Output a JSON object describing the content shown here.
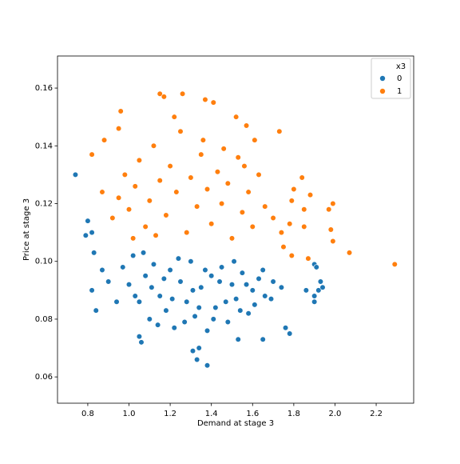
{
  "chart_data": {
    "type": "scatter",
    "xlabel": "Demand at stage 3",
    "ylabel": "Price at stage 3",
    "xlim": [
      0.653,
      2.382
    ],
    "ylim": [
      0.0509,
      0.1711
    ],
    "xticks": [
      0.8,
      {
        "value": 1.0,
        "label": "1.0"
      },
      1.2,
      1.4,
      1.6,
      1.8,
      {
        "value": 2.0,
        "label": "2.0"
      },
      2.2
    ],
    "yticks": [
      0.06,
      0.08,
      {
        "value": 0.1,
        "label": "0.10"
      },
      0.12,
      0.14,
      0.16
    ],
    "legend_title": "x3",
    "legend_position": "upper right",
    "series": [
      {
        "name": "0",
        "color": "#1f77b4",
        "x": [
          0.74,
          0.79,
          0.8,
          0.82,
          0.83,
          0.82,
          0.84,
          0.87,
          0.9,
          0.94,
          1.06,
          1.05,
          1.33,
          1.38,
          1.31,
          1.34,
          1.53,
          1.65,
          1.76,
          1.78,
          1.86,
          1.9,
          1.91,
          1.92,
          1.93,
          1.9,
          1.9,
          1.94,
          0.97,
          1.0,
          1.02,
          1.05,
          1.08,
          1.1,
          1.12,
          1.15,
          1.18,
          1.2,
          1.22,
          1.25,
          1.28,
          1.3,
          1.32,
          1.35,
          1.38,
          1.4,
          1.42,
          1.45,
          1.48,
          1.5,
          1.52,
          1.55,
          1.58,
          1.6,
          1.63,
          1.66,
          1.7,
          1.74,
          1.03,
          1.07,
          1.11,
          1.14,
          1.17,
          1.21,
          1.24,
          1.27,
          1.31,
          1.34,
          1.37,
          1.41,
          1.44,
          1.47,
          1.51,
          1.54,
          1.57,
          1.61,
          1.65,
          1.69
        ],
        "y": [
          0.13,
          0.109,
          0.114,
          0.11,
          0.103,
          0.09,
          0.083,
          0.097,
          0.093,
          0.086,
          0.072,
          0.074,
          0.066,
          0.064,
          0.069,
          0.07,
          0.073,
          0.073,
          0.077,
          0.075,
          0.09,
          0.099,
          0.098,
          0.09,
          0.093,
          0.088,
          0.086,
          0.091,
          0.098,
          0.092,
          0.102,
          0.086,
          0.095,
          0.08,
          0.099,
          0.088,
          0.083,
          0.097,
          0.077,
          0.093,
          0.086,
          0.1,
          0.081,
          0.091,
          0.076,
          0.095,
          0.084,
          0.098,
          0.079,
          0.092,
          0.087,
          0.096,
          0.082,
          0.09,
          0.094,
          0.088,
          0.093,
          0.091,
          0.088,
          0.103,
          0.091,
          0.078,
          0.094,
          0.087,
          0.101,
          0.079,
          0.09,
          0.084,
          0.097,
          0.08,
          0.093,
          0.086,
          0.1,
          0.083,
          0.092,
          0.085,
          0.097,
          0.087
        ]
      },
      {
        "name": "1",
        "color": "#ff7f0e",
        "x": [
          2.29,
          2.07,
          1.98,
          1.99,
          1.97,
          1.99,
          1.88,
          1.85,
          1.85,
          1.84,
          1.8,
          1.79,
          1.73,
          0.82,
          0.87,
          0.88,
          0.96,
          0.95,
          1.15,
          1.17,
          1.26,
          1.37,
          1.41,
          1.52,
          1.57,
          1.61,
          1.87,
          1.79,
          1.75,
          0.92,
          0.95,
          0.98,
          1.0,
          1.03,
          1.05,
          1.08,
          1.1,
          1.12,
          1.15,
          1.18,
          1.2,
          1.23,
          1.25,
          1.28,
          1.3,
          1.33,
          1.35,
          1.38,
          1.4,
          1.43,
          1.45,
          1.48,
          1.5,
          1.53,
          1.55,
          1.58,
          1.6,
          1.63,
          1.66,
          1.7,
          1.74,
          1.78,
          1.02,
          1.13,
          1.22,
          1.36,
          1.46,
          1.56
        ],
        "y": [
          0.099,
          0.103,
          0.111,
          0.107,
          0.118,
          0.12,
          0.123,
          0.118,
          0.112,
          0.129,
          0.125,
          0.121,
          0.145,
          0.137,
          0.124,
          0.142,
          0.152,
          0.146,
          0.158,
          0.157,
          0.158,
          0.156,
          0.155,
          0.15,
          0.147,
          0.142,
          0.101,
          0.102,
          0.105,
          0.115,
          0.122,
          0.13,
          0.118,
          0.126,
          0.135,
          0.112,
          0.121,
          0.14,
          0.128,
          0.116,
          0.133,
          0.124,
          0.145,
          0.11,
          0.129,
          0.119,
          0.137,
          0.125,
          0.113,
          0.131,
          0.12,
          0.127,
          0.108,
          0.136,
          0.117,
          0.124,
          0.112,
          0.13,
          0.119,
          0.115,
          0.11,
          0.113,
          0.108,
          0.109,
          0.15,
          0.142,
          0.139,
          0.133
        ]
      }
    ]
  }
}
